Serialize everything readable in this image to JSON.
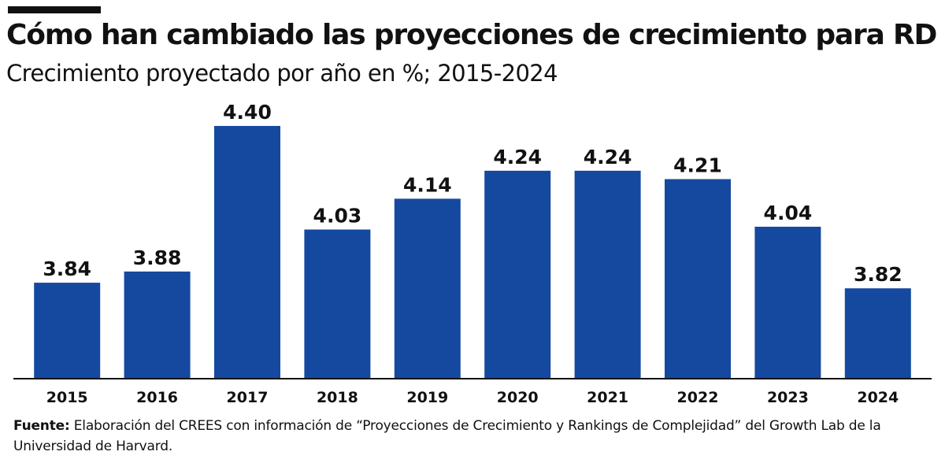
{
  "chart_data": {
    "type": "bar",
    "title": "Cómo han cambiado las proyecciones de crecimiento para RD",
    "subtitle": "Crecimiento proyectado por año en %; 2015-2024",
    "categories": [
      "2015",
      "2016",
      "2017",
      "2018",
      "2019",
      "2020",
      "2021",
      "2022",
      "2023",
      "2024"
    ],
    "values": [
      3.84,
      3.88,
      4.4,
      4.03,
      4.14,
      4.24,
      4.24,
      4.21,
      4.04,
      3.82
    ],
    "data_labels": [
      "3.84",
      "3.88",
      "4.40",
      "4.03",
      "4.14",
      "4.24",
      "4.24",
      "4.21",
      "4.04",
      "3.82"
    ],
    "ylim": [
      3.5,
      4.5
    ],
    "grid": false,
    "bar_color": "#1549A0"
  },
  "source": {
    "label": "Fuente:",
    "text": " Elaboración del CREES con información de “Proyecciones de Crecimiento y Rankings de Complejidad” del Growth Lab de la Universidad de Harvard."
  }
}
